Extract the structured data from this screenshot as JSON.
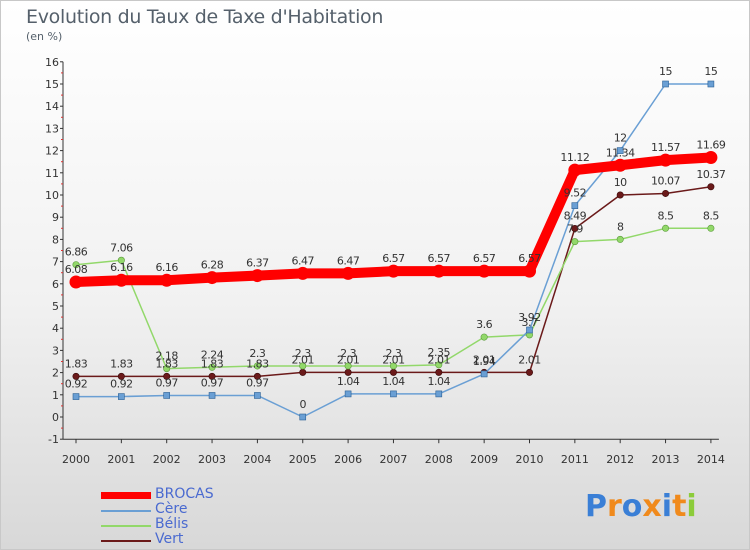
{
  "title": "Evolution du Taux de Taxe d'Habitation",
  "unit_label": "(en %)",
  "colors": {
    "BROCAS": "#ff0000",
    "Cère": "#6a9fd4",
    "Bélis": "#92d86a",
    "Vert": "#6b1a1a"
  },
  "logo": {
    "letters": [
      "P",
      "r",
      "o",
      "x",
      "i",
      "t",
      "i"
    ],
    "colors": [
      "#3a7fd6",
      "#f08a1c",
      "#3a7fd6",
      "#f08a1c",
      "#3a7fd6",
      "#f08a1c",
      "#8ccc3a"
    ]
  },
  "chart_data": {
    "type": "line",
    "title": "Evolution du Taux de Taxe d'Habitation",
    "ylabel": "(en %)",
    "xlabel": "",
    "x": [
      2000,
      2001,
      2002,
      2003,
      2004,
      2005,
      2006,
      2007,
      2008,
      2009,
      2010,
      2011,
      2012,
      2013,
      2014
    ],
    "ylim": [
      -1,
      16
    ],
    "yticks": [
      -1,
      0,
      1,
      2,
      3,
      4,
      5,
      6,
      7,
      8,
      9,
      10,
      11,
      12,
      13,
      14,
      15,
      16
    ],
    "grid": false,
    "legend_position": "bottom-left",
    "series": [
      {
        "name": "BROCAS",
        "values": [
          6.08,
          6.16,
          6.16,
          6.28,
          6.37,
          6.47,
          6.47,
          6.57,
          6.57,
          6.57,
          6.57,
          11.12,
          11.34,
          11.57,
          11.69
        ],
        "labels": [
          "6.08",
          "6.16",
          "6.16",
          "6.28",
          "6.37",
          "6.47",
          "6.47",
          "6.57",
          "6.57",
          "6.57",
          "6.57",
          "11.12",
          "11.34",
          "11.57",
          "11.69"
        ]
      },
      {
        "name": "Cère",
        "values": [
          0.92,
          0.92,
          0.97,
          0.97,
          0.97,
          0,
          1.04,
          1.04,
          1.04,
          1.94,
          3.92,
          9.52,
          12,
          15,
          15
        ],
        "labels": [
          "0.92",
          "0.92",
          "0.97",
          "0.97",
          "0.97",
          "0",
          "1.04",
          "1.04",
          "1.04",
          "1.94",
          "3.92",
          "9.52",
          "12",
          "15",
          "15"
        ]
      },
      {
        "name": "Bélis",
        "values": [
          6.86,
          7.06,
          2.18,
          2.24,
          2.3,
          2.3,
          2.3,
          2.3,
          2.35,
          3.6,
          3.7,
          7.9,
          8,
          8.5,
          8.5
        ],
        "labels": [
          "6.86",
          "7.06",
          "2.18",
          "2.24",
          "2.3",
          "2.3",
          "2.3",
          "2.3",
          "2.35",
          "3.6",
          "3.7",
          "7.9",
          "8",
          "8.5",
          "8.5"
        ]
      },
      {
        "name": "Vert",
        "values": [
          1.83,
          1.83,
          1.83,
          1.83,
          1.83,
          2.01,
          2.01,
          2.01,
          2.01,
          2.01,
          2.01,
          8.49,
          10,
          10.07,
          10.37
        ],
        "labels": [
          "1.83",
          "1.83",
          "1.83",
          "1.83",
          "1.83",
          "2.01",
          "2.01",
          "2.01",
          "2.01",
          "2.01",
          "2.01",
          "8.49",
          "10",
          "10.07",
          "10.37"
        ]
      }
    ]
  }
}
